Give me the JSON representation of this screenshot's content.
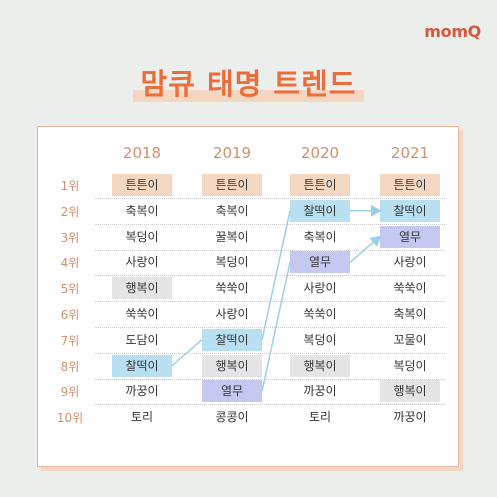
{
  "brand": "momQ",
  "title": "맘큐 태명 트렌드",
  "years": [
    "2018",
    "2019",
    "2020",
    "2021"
  ],
  "ranks": [
    "1위",
    "2위",
    "3위",
    "4위",
    "5위",
    "6위",
    "7위",
    "8위",
    "9위",
    "10위"
  ],
  "columns": [
    [
      "튼튼이",
      "축복이",
      "복덩이",
      "사랑이",
      "행복이",
      "쑥쑥이",
      "도담이",
      "찰떡이",
      "까꿍이",
      "토리"
    ],
    [
      "튼튼이",
      "축복이",
      "꿀복이",
      "복덩이",
      "쑥쑥이",
      "사랑이",
      "찰떡이",
      "행복이",
      "열무",
      "콩콩이"
    ],
    [
      "튼튼이",
      "찰떡이",
      "축복이",
      "열무",
      "사랑이",
      "쑥쑥이",
      "복덩이",
      "행복이",
      "까꿍이",
      "토리"
    ],
    [
      "튼튼이",
      "찰떡이",
      "열무",
      "사랑이",
      "쑥쑥이",
      "축복이",
      "꼬물이",
      "복덩이",
      "행복이",
      "까꿍이"
    ]
  ],
  "highlights": {
    "튼튼이": "#f3d7c3",
    "찰떡이": "#b9e0f0",
    "열무": "#c5c9f2",
    "행복이": "#e4e4e4"
  }
}
